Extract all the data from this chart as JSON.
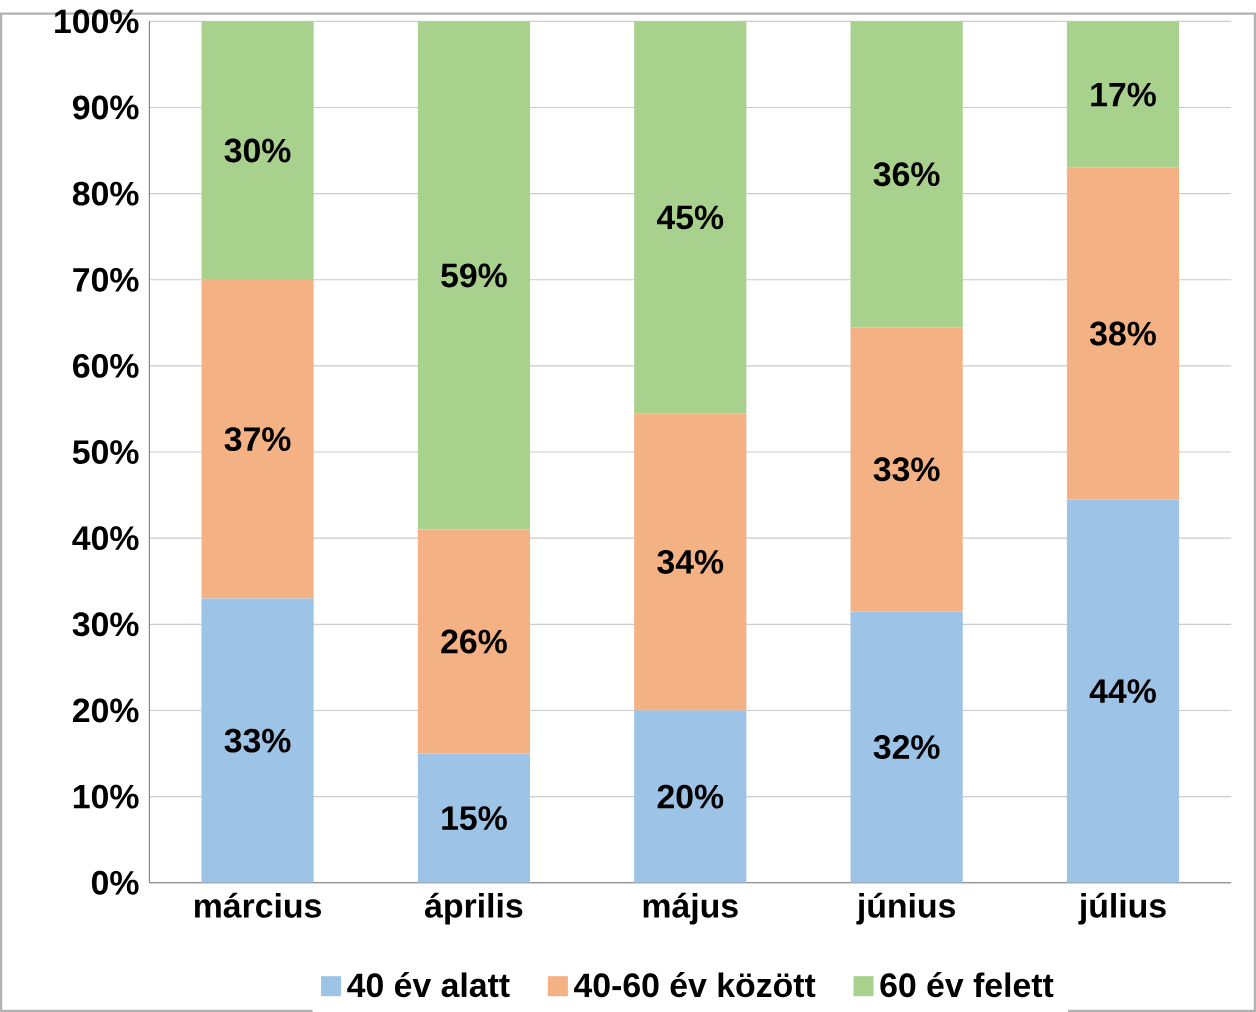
{
  "chart_data": {
    "type": "bar",
    "stacked": true,
    "categories": [
      "március",
      "április",
      "május",
      "június",
      "július"
    ],
    "series": [
      {
        "name": "40 év alatt",
        "color": "#9dc3e6",
        "values": [
          33,
          15,
          20,
          31.5,
          44.5
        ],
        "value_labels": [
          "33%",
          "15%",
          "20%",
          "32%",
          "44%"
        ]
      },
      {
        "name": "40-60 év között",
        "color": "#f4b183",
        "values": [
          37,
          26,
          34.5,
          33,
          38.5
        ],
        "value_labels": [
          "37%",
          "26%",
          "34%",
          "33%",
          "38%"
        ]
      },
      {
        "name": "60 év felett",
        "color": "#a9d18e",
        "values": [
          30,
          59,
          45.5,
          35.5,
          17
        ],
        "value_labels": [
          "30%",
          "59%",
          "45%",
          "36%",
          "17%"
        ]
      }
    ],
    "ylim": [
      0,
      100
    ],
    "yticks": [
      {
        "value": 0,
        "label": "0%"
      },
      {
        "value": 10,
        "label": "10%"
      },
      {
        "value": 20,
        "label": "20%"
      },
      {
        "value": 30,
        "label": "30%"
      },
      {
        "value": 40,
        "label": "40%"
      },
      {
        "value": 50,
        "label": "50%"
      },
      {
        "value": 60,
        "label": "60%"
      },
      {
        "value": 70,
        "label": "70%"
      },
      {
        "value": 80,
        "label": "80%"
      },
      {
        "value": 90,
        "label": "90%"
      },
      {
        "value": 100,
        "label": "100%"
      }
    ],
    "grid": "y",
    "legend": "bottom"
  }
}
